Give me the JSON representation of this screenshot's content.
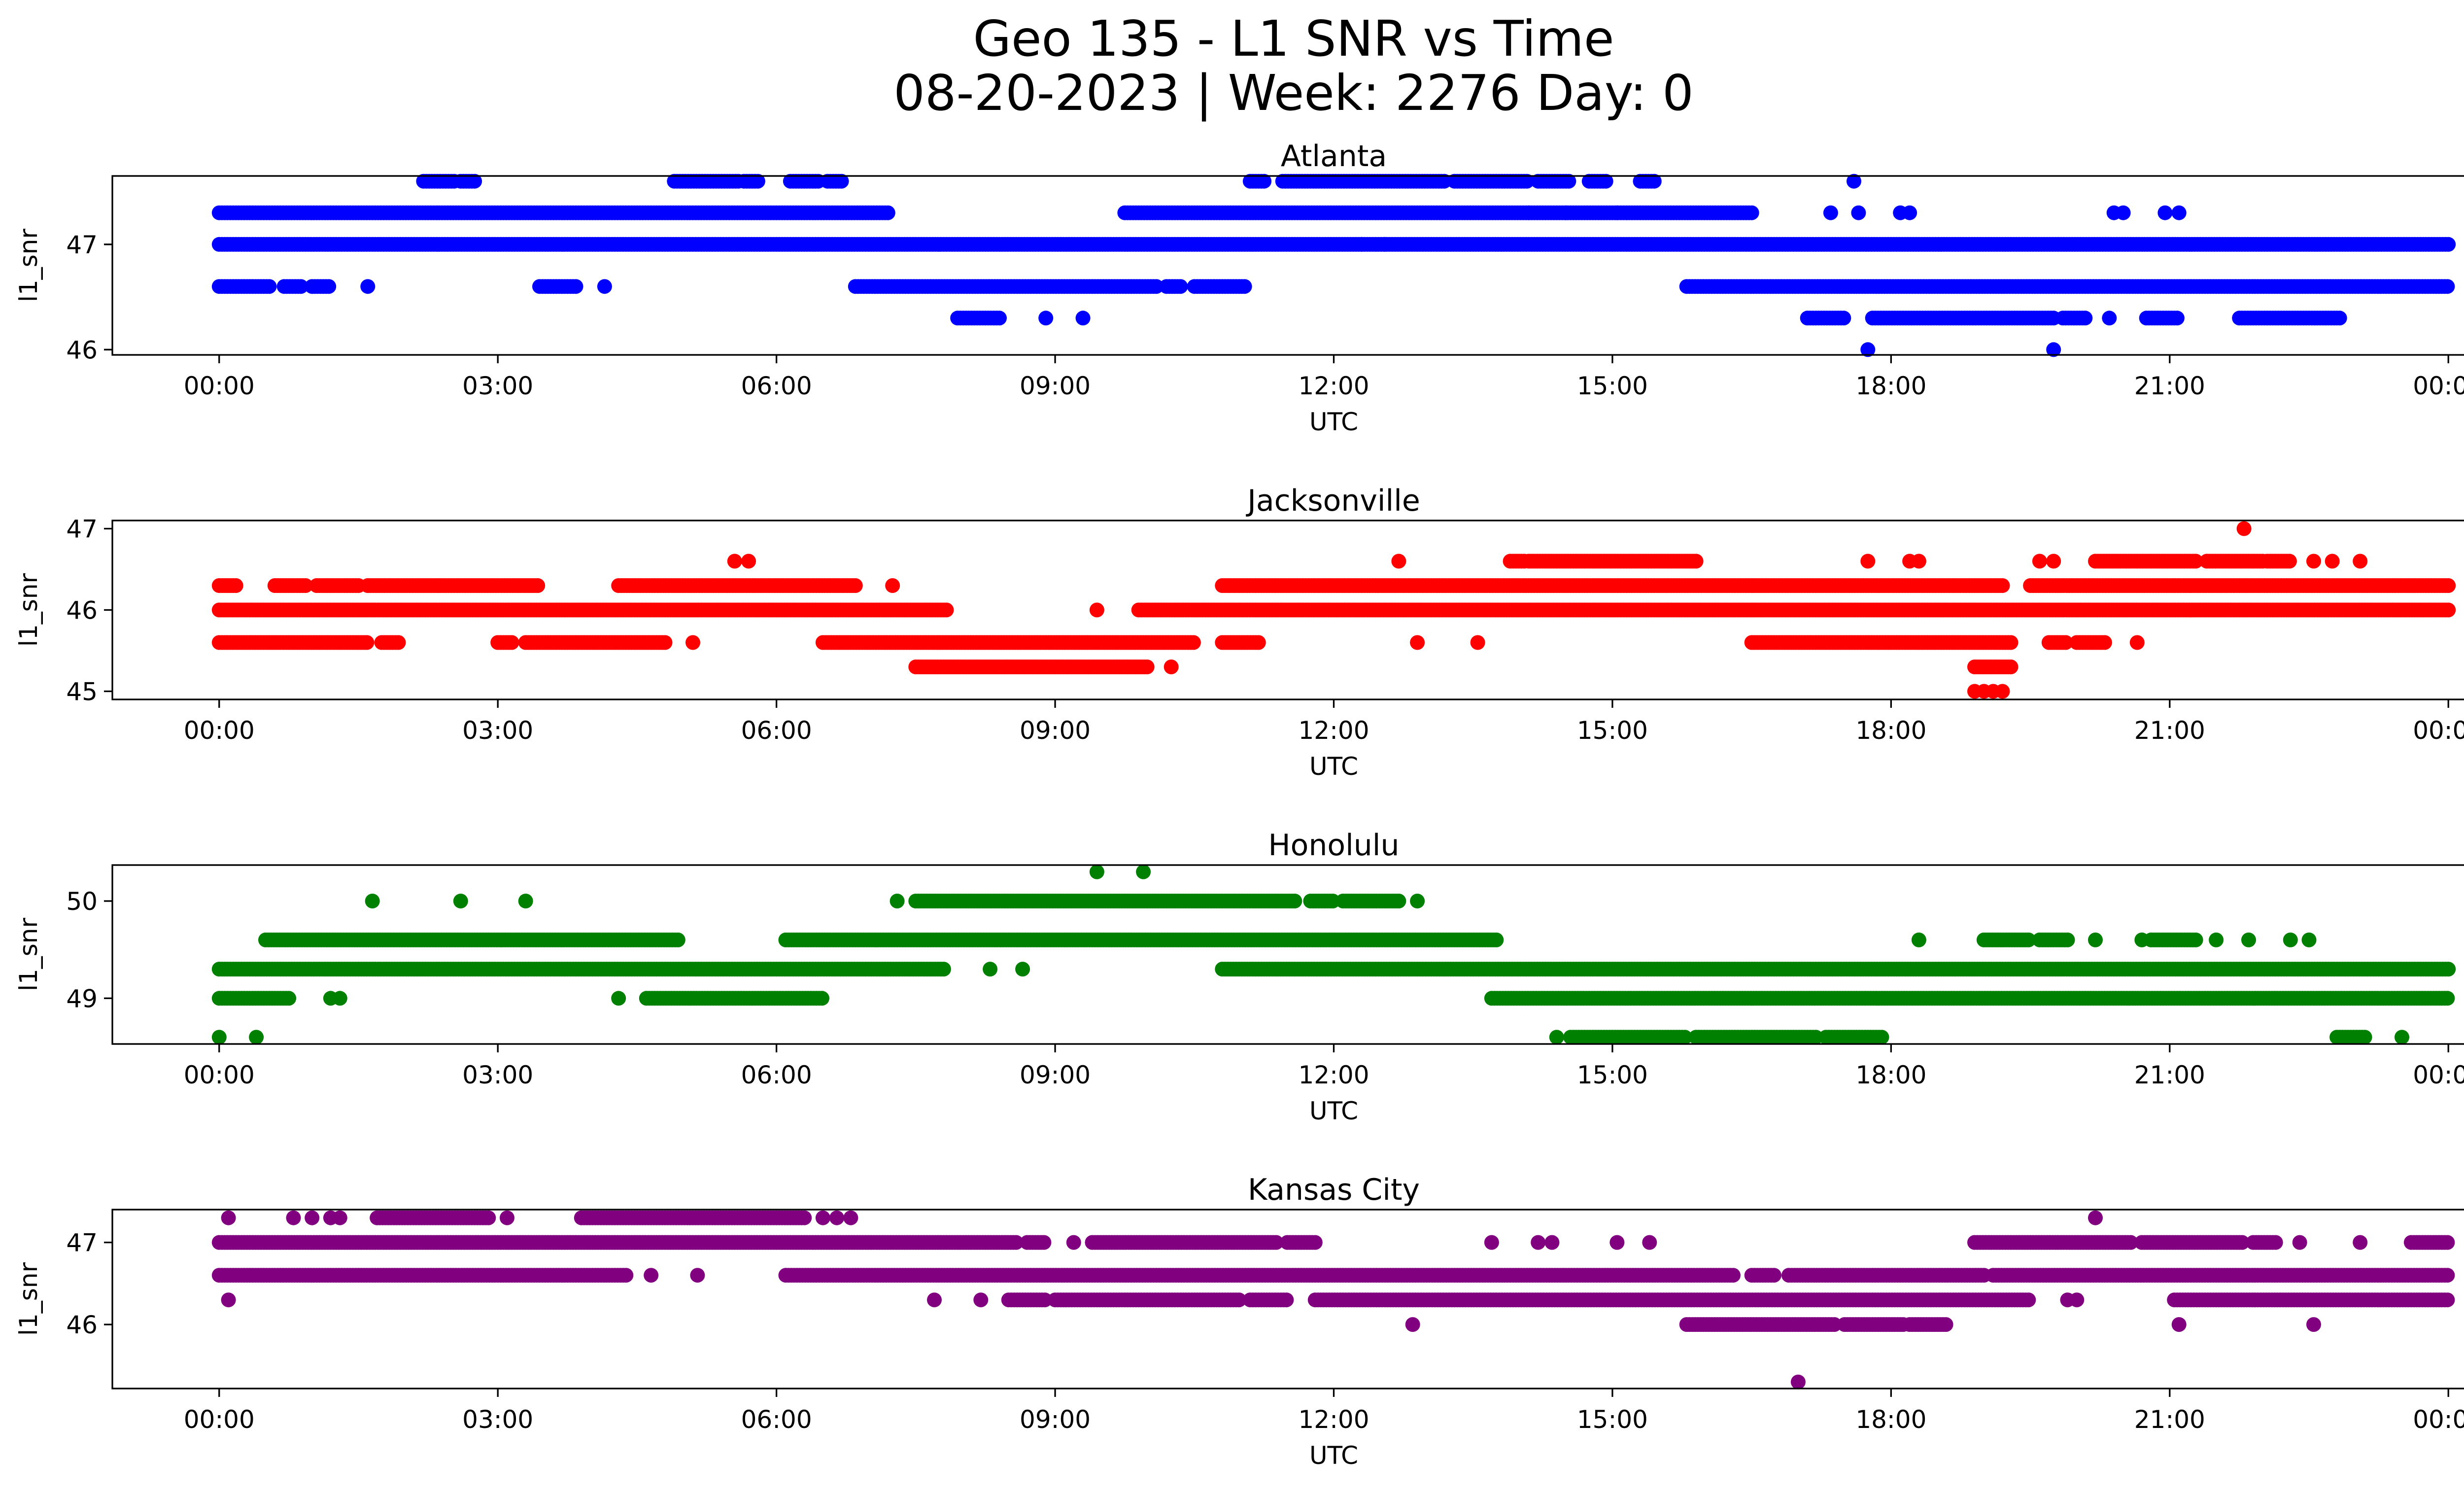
{
  "figure": {
    "title_line1": "Geo 135 - L1 SNR vs Time",
    "title_line2": "08-20-2023 | Week: 2276 Day: 0"
  },
  "chart_data": [
    {
      "type": "scatter",
      "title": "Atlanta",
      "xlabel": "UTC",
      "ylabel": "l1_snr",
      "color": "#0000ff",
      "x_unit": "hours UTC",
      "xlim": [
        -1.15,
        25.15
      ],
      "ylim": [
        45.95,
        47.65
      ],
      "x_ticks": [
        0,
        3,
        6,
        9,
        12,
        15,
        18,
        21,
        24
      ],
      "x_tick_labels": [
        "00:00",
        "03:00",
        "06:00",
        "09:00",
        "12:00",
        "15:00",
        "18:00",
        "21:00",
        "00:00"
      ],
      "y_ticks": [
        46,
        47
      ],
      "y_tick_labels": [
        "46",
        "47"
      ],
      "series": [
        {
          "runs": [
            [
              47.0,
              0.0,
              24.0
            ],
            [
              47.3,
              0.0,
              7.2
            ],
            [
              47.3,
              9.75,
              16.5
            ],
            [
              46.6,
              0.0,
              0.55
            ],
            [
              46.6,
              0.7,
              0.9
            ],
            [
              46.6,
              1.0,
              1.2
            ],
            [
              46.6,
              3.45,
              3.85
            ],
            [
              46.6,
              6.85,
              10.1
            ],
            [
              46.6,
              10.2,
              10.35
            ],
            [
              46.6,
              10.5,
              11.05
            ],
            [
              46.6,
              15.8,
              24.0
            ],
            [
              47.6,
              2.2,
              2.55
            ],
            [
              47.6,
              2.6,
              2.75
            ],
            [
              47.6,
              4.9,
              5.6
            ],
            [
              47.6,
              5.65,
              5.8
            ],
            [
              47.6,
              6.15,
              6.45
            ],
            [
              47.6,
              6.55,
              6.7
            ],
            [
              47.6,
              11.1,
              11.25
            ],
            [
              47.6,
              11.45,
              13.2
            ],
            [
              47.6,
              13.3,
              14.1
            ],
            [
              47.6,
              14.2,
              14.55
            ],
            [
              47.6,
              14.75,
              14.95
            ],
            [
              47.6,
              15.3,
              15.45
            ],
            [
              46.3,
              7.95,
              8.4
            ],
            [
              46.3,
              17.1,
              17.5
            ],
            [
              46.3,
              17.8,
              19.75
            ],
            [
              46.3,
              19.85,
              20.1
            ],
            [
              46.3,
              20.75,
              21.1
            ],
            [
              46.3,
              21.75,
              22.85
            ]
          ],
          "points": [
            [
              1.6,
              46.6
            ],
            [
              4.15,
              46.6
            ],
            [
              8.9,
              46.3
            ],
            [
              9.3,
              46.3
            ],
            [
              12.3,
              47.0
            ],
            [
              12.55,
              47.0
            ],
            [
              14.1,
              47.3
            ],
            [
              14.5,
              47.3
            ],
            [
              15.05,
              47.3
            ],
            [
              17.6,
              47.6
            ],
            [
              17.35,
              47.3
            ],
            [
              17.65,
              47.3
            ],
            [
              18.1,
              47.3
            ],
            [
              18.2,
              47.3
            ],
            [
              20.4,
              47.3
            ],
            [
              20.5,
              47.3
            ],
            [
              20.95,
              47.3
            ],
            [
              21.1,
              47.3
            ],
            [
              20.35,
              46.3
            ],
            [
              17.75,
              46.0
            ],
            [
              19.75,
              46.0
            ]
          ]
        }
      ]
    },
    {
      "type": "scatter",
      "title": "Jacksonville",
      "xlabel": "UTC",
      "ylabel": "l1_snr",
      "color": "#ff0000",
      "x_unit": "hours UTC",
      "xlim": [
        -1.15,
        25.15
      ],
      "ylim": [
        44.9,
        47.1
      ],
      "x_ticks": [
        0,
        3,
        6,
        9,
        12,
        15,
        18,
        21,
        24
      ],
      "x_tick_labels": [
        "00:00",
        "03:00",
        "06:00",
        "09:00",
        "12:00",
        "15:00",
        "18:00",
        "21:00",
        "00:00"
      ],
      "y_ticks": [
        45,
        46,
        47
      ],
      "y_tick_labels": [
        "45",
        "46",
        "47"
      ],
      "series": [
        {
          "runs": [
            [
              46.0,
              0.0,
              7.85
            ],
            [
              46.0,
              9.9,
              24.0
            ],
            [
              45.6,
              0.0,
              1.6
            ],
            [
              45.6,
              1.75,
              1.95
            ],
            [
              45.6,
              3.0,
              3.15
            ],
            [
              45.6,
              3.3,
              4.8
            ],
            [
              45.6,
              6.5,
              10.5
            ],
            [
              45.6,
              10.8,
              11.2
            ],
            [
              45.6,
              16.5,
              19.3
            ],
            [
              45.6,
              19.7,
              19.9
            ],
            [
              45.6,
              20.0,
              20.3
            ],
            [
              46.3,
              0.0,
              0.2
            ],
            [
              46.3,
              0.6,
              0.95
            ],
            [
              46.3,
              1.05,
              1.5
            ],
            [
              46.3,
              1.6,
              3.45
            ],
            [
              46.3,
              4.3,
              6.85
            ],
            [
              46.3,
              10.8,
              19.2
            ],
            [
              46.3,
              19.5,
              24.0
            ],
            [
              45.3,
              7.5,
              10.0
            ],
            [
              45.3,
              18.9,
              19.3
            ],
            [
              46.6,
              13.9,
              14.05
            ],
            [
              46.6,
              14.1,
              15.9
            ],
            [
              46.6,
              20.2,
              21.3
            ],
            [
              46.6,
              21.4,
              22.0
            ],
            [
              46.6,
              22.05,
              22.3
            ]
          ],
          "points": [
            [
              5.55,
              46.6
            ],
            [
              5.7,
              46.6
            ],
            [
              12.7,
              46.6
            ],
            [
              17.75,
              46.6
            ],
            [
              18.2,
              46.6
            ],
            [
              18.3,
              46.6
            ],
            [
              19.6,
              46.6
            ],
            [
              19.75,
              46.6
            ],
            [
              22.55,
              46.6
            ],
            [
              22.75,
              46.6
            ],
            [
              23.05,
              46.6
            ],
            [
              21.8,
              47.0
            ],
            [
              9.45,
              46.0
            ],
            [
              5.1,
              45.6
            ],
            [
              12.9,
              45.6
            ],
            [
              13.55,
              45.6
            ],
            [
              20.65,
              45.6
            ],
            [
              10.25,
              45.3
            ],
            [
              18.9,
              45.0
            ],
            [
              19.0,
              45.0
            ],
            [
              19.1,
              45.0
            ],
            [
              19.2,
              45.0
            ],
            [
              7.25,
              46.3
            ]
          ]
        }
      ]
    },
    {
      "type": "scatter",
      "title": "Honolulu",
      "xlabel": "UTC",
      "ylabel": "l1_snr",
      "color": "#008000",
      "x_unit": "hours UTC",
      "xlim": [
        -1.15,
        25.15
      ],
      "ylim": [
        48.53,
        50.37
      ],
      "x_ticks": [
        0,
        3,
        6,
        9,
        12,
        15,
        18,
        21,
        24
      ],
      "x_tick_labels": [
        "00:00",
        "03:00",
        "06:00",
        "09:00",
        "12:00",
        "15:00",
        "18:00",
        "21:00",
        "00:00"
      ],
      "y_ticks": [
        49,
        50
      ],
      "y_tick_labels": [
        "49",
        "50"
      ],
      "series": [
        {
          "runs": [
            [
              49.3,
              0.0,
              7.8
            ],
            [
              49.3,
              10.8,
              24.0
            ],
            [
              49.0,
              0.0,
              0.75
            ],
            [
              49.0,
              4.6,
              6.5
            ],
            [
              49.0,
              13.7,
              24.0
            ],
            [
              49.6,
              0.5,
              4.95
            ],
            [
              49.6,
              6.1,
              13.75
            ],
            [
              49.6,
              19.0,
              19.5
            ],
            [
              49.6,
              19.6,
              19.9
            ],
            [
              49.6,
              20.8,
              21.3
            ],
            [
              50.0,
              7.5,
              11.6
            ],
            [
              50.0,
              11.75,
              12.0
            ],
            [
              50.0,
              12.1,
              12.7
            ],
            [
              48.6,
              14.55,
              15.8
            ],
            [
              48.6,
              15.9,
              17.2
            ],
            [
              48.6,
              17.3,
              17.9
            ],
            [
              48.6,
              22.8,
              23.1
            ]
          ],
          "points": [
            [
              0.0,
              48.6
            ],
            [
              0.4,
              48.6
            ],
            [
              1.2,
              49.0
            ],
            [
              1.3,
              49.0
            ],
            [
              4.3,
              49.0
            ],
            [
              1.65,
              50.0
            ],
            [
              2.6,
              50.0
            ],
            [
              3.3,
              50.0
            ],
            [
              7.3,
              50.0
            ],
            [
              12.9,
              50.0
            ],
            [
              9.45,
              50.3
            ],
            [
              9.95,
              50.3
            ],
            [
              8.3,
              49.3
            ],
            [
              8.65,
              49.3
            ],
            [
              18.3,
              49.6
            ],
            [
              20.2,
              49.6
            ],
            [
              20.7,
              49.6
            ],
            [
              21.5,
              49.6
            ],
            [
              21.85,
              49.6
            ],
            [
              22.3,
              49.6
            ],
            [
              22.5,
              49.6
            ],
            [
              14.4,
              48.6
            ],
            [
              23.5,
              48.6
            ]
          ]
        }
      ]
    },
    {
      "type": "scatter",
      "title": "Kansas City",
      "xlabel": "UTC",
      "ylabel": "l1_snr",
      "color": "#800080",
      "x_unit": "hours UTC",
      "xlim": [
        -1.15,
        25.15
      ],
      "ylim": [
        45.22,
        47.4
      ],
      "x_ticks": [
        0,
        3,
        6,
        9,
        12,
        15,
        18,
        21,
        24
      ],
      "x_tick_labels": [
        "00:00",
        "03:00",
        "06:00",
        "09:00",
        "12:00",
        "15:00",
        "18:00",
        "21:00",
        "00:00"
      ],
      "y_ticks": [
        46,
        47
      ],
      "y_tick_labels": [
        "46",
        "47"
      ],
      "series": [
        {
          "runs": [
            [
              47.0,
              0.0,
              8.6
            ],
            [
              47.0,
              8.7,
              8.9
            ],
            [
              47.0,
              9.4,
              11.4
            ],
            [
              47.0,
              11.5,
              11.8
            ],
            [
              47.0,
              18.9,
              20.6
            ],
            [
              47.0,
              20.7,
              21.8
            ],
            [
              47.0,
              21.9,
              22.15
            ],
            [
              47.0,
              23.6,
              24.0
            ],
            [
              46.6,
              0.0,
              4.4
            ],
            [
              46.6,
              6.1,
              16.3
            ],
            [
              46.6,
              16.5,
              16.75
            ],
            [
              46.6,
              16.9,
              19.0
            ],
            [
              46.6,
              19.1,
              24.0
            ],
            [
              47.3,
              1.7,
              2.9
            ],
            [
              47.3,
              3.9,
              6.3
            ],
            [
              46.3,
              8.5,
              8.9
            ],
            [
              46.3,
              9.0,
              11.0
            ],
            [
              46.3,
              11.1,
              11.5
            ],
            [
              46.3,
              11.8,
              19.5
            ],
            [
              46.3,
              21.05,
              24.0
            ],
            [
              46.0,
              15.8,
              17.4
            ],
            [
              46.0,
              17.5,
              18.15
            ],
            [
              46.0,
              18.2,
              18.6
            ]
          ],
          "points": [
            [
              0.1,
              47.3
            ],
            [
              0.8,
              47.3
            ],
            [
              1.0,
              47.3
            ],
            [
              1.2,
              47.3
            ],
            [
              1.3,
              47.3
            ],
            [
              3.1,
              47.3
            ],
            [
              6.5,
              47.3
            ],
            [
              6.65,
              47.3
            ],
            [
              6.8,
              47.3
            ],
            [
              20.2,
              47.3
            ],
            [
              0.1,
              46.3
            ],
            [
              7.7,
              46.3
            ],
            [
              8.2,
              46.3
            ],
            [
              19.9,
              46.3
            ],
            [
              20.0,
              46.3
            ],
            [
              4.65,
              46.6
            ],
            [
              5.15,
              46.6
            ],
            [
              9.2,
              47.0
            ],
            [
              13.7,
              47.0
            ],
            [
              14.2,
              47.0
            ],
            [
              14.35,
              47.0
            ],
            [
              15.05,
              47.0
            ],
            [
              15.4,
              47.0
            ],
            [
              22.4,
              47.0
            ],
            [
              23.05,
              47.0
            ],
            [
              12.85,
              46.0
            ],
            [
              21.1,
              46.0
            ],
            [
              22.55,
              46.0
            ],
            [
              17.0,
              45.3
            ]
          ]
        }
      ]
    }
  ]
}
